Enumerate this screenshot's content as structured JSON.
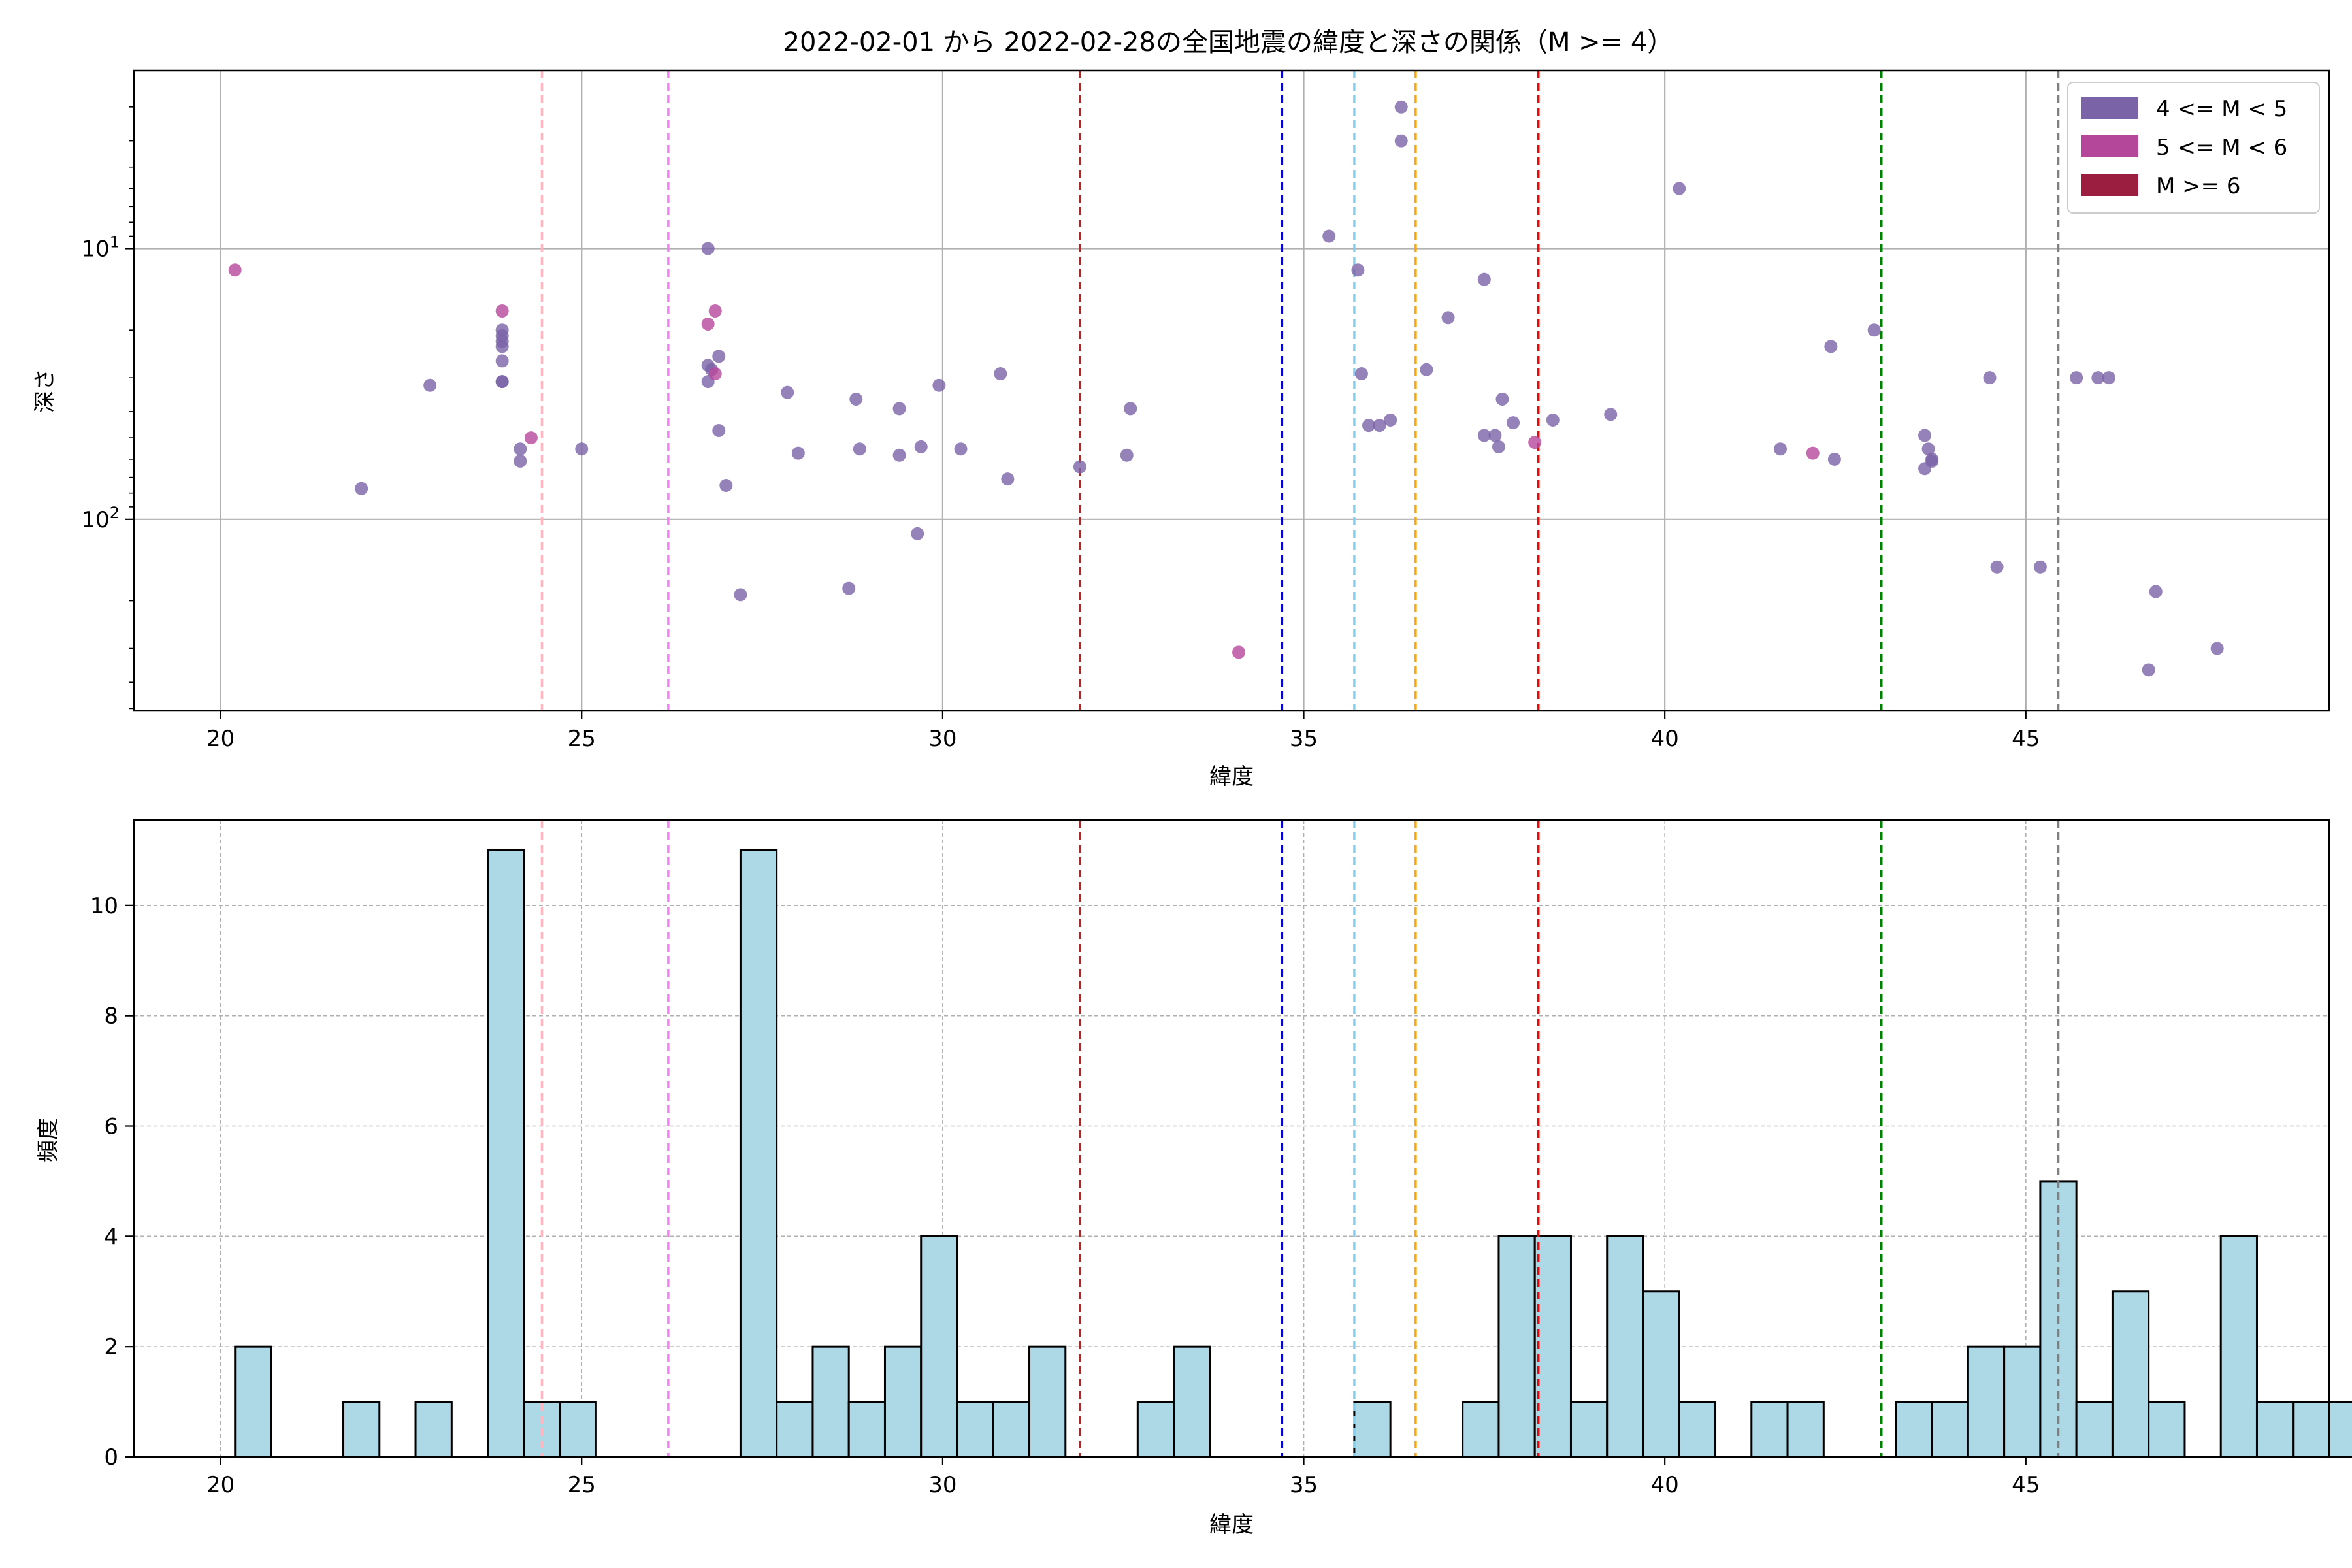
{
  "title": "2022-02-01 から 2022-02-28の全国地震の緯度と深さの関係（M >= 4）",
  "colors": {
    "m4": "#7b63a8",
    "m5": "#b5479b",
    "m6": "#9b1d40",
    "hist_fill": "#add8e6",
    "hist_edge": "#000000",
    "grid": "#b0b0b0"
  },
  "legend": {
    "position": "top-right",
    "items": [
      {
        "label": "4 <= M < 5",
        "color": "#7b63a8"
      },
      {
        "label": "5 <= M < 6",
        "color": "#b5479b"
      },
      {
        "label": "M >= 6",
        "color": "#9b1d40"
      }
    ]
  },
  "reference_lines": [
    {
      "x": 24.45,
      "color": "#ffb6c1"
    },
    {
      "x": 26.2,
      "color": "#ee82ee"
    },
    {
      "x": 31.9,
      "color": "#a52a2a"
    },
    {
      "x": 34.7,
      "color": "#0000ff"
    },
    {
      "x": 35.7,
      "color": "#87ceeb"
    },
    {
      "x": 36.55,
      "color": "#ffa500"
    },
    {
      "x": 38.25,
      "color": "#ff0000"
    },
    {
      "x": 43.0,
      "color": "#008000"
    },
    {
      "x": 45.45,
      "color": "#808080"
    }
  ],
  "chart_data": [
    {
      "type": "scatter",
      "xlabel": "緯度",
      "ylabel": "深さ",
      "xlim": [
        18.8,
        49.2
      ],
      "ylim": [
        510,
        2.2
      ],
      "yscale": "log",
      "y_inverted": true,
      "grid": true,
      "xticks": [
        20,
        25,
        30,
        35,
        40,
        45
      ],
      "yticks": [
        {
          "value": 10,
          "base": "10",
          "exp": "1"
        },
        {
          "value": 100,
          "base": "10",
          "exp": "2"
        }
      ],
      "series": [
        {
          "name": "4 <= M < 5",
          "points": [
            [
              21.95,
              77
            ],
            [
              22.9,
              32
            ],
            [
              23.9,
              20
            ],
            [
              23.9,
              21
            ],
            [
              23.9,
              22
            ],
            [
              23.9,
              23
            ],
            [
              23.9,
              26
            ],
            [
              23.9,
              31
            ],
            [
              23.9,
              31
            ],
            [
              24.15,
              55
            ],
            [
              24.15,
              61
            ],
            [
              25.0,
              55
            ],
            [
              26.75,
              10
            ],
            [
              26.75,
              27
            ],
            [
              26.75,
              31
            ],
            [
              26.8,
              28
            ],
            [
              26.9,
              25
            ],
            [
              26.9,
              47
            ],
            [
              27.0,
              75
            ],
            [
              27.2,
              190
            ],
            [
              27.85,
              34
            ],
            [
              28.0,
              57
            ],
            [
              28.7,
              180
            ],
            [
              28.8,
              36
            ],
            [
              28.85,
              55
            ],
            [
              29.4,
              39
            ],
            [
              29.4,
              58
            ],
            [
              29.65,
              113
            ],
            [
              29.7,
              54
            ],
            [
              29.95,
              32
            ],
            [
              30.25,
              55
            ],
            [
              30.8,
              29
            ],
            [
              30.9,
              71
            ],
            [
              31.9,
              64
            ],
            [
              32.55,
              58
            ],
            [
              32.6,
              39
            ],
            [
              35.35,
              9
            ],
            [
              35.75,
              12
            ],
            [
              35.8,
              29
            ],
            [
              35.9,
              45
            ],
            [
              36.05,
              45
            ],
            [
              36.2,
              43
            ],
            [
              36.35,
              4
            ],
            [
              36.35,
              3
            ],
            [
              36.7,
              28
            ],
            [
              37.0,
              18
            ],
            [
              37.5,
              13
            ],
            [
              37.5,
              49
            ],
            [
              37.65,
              49
            ],
            [
              37.7,
              54
            ],
            [
              37.75,
              36
            ],
            [
              37.9,
              44
            ],
            [
              38.45,
              43
            ],
            [
              39.25,
              41
            ],
            [
              40.2,
              6
            ],
            [
              41.6,
              55
            ],
            [
              42.3,
              23
            ],
            [
              42.35,
              60
            ],
            [
              42.9,
              20
            ],
            [
              43.6,
              49
            ],
            [
              43.6,
              65
            ],
            [
              43.65,
              55
            ],
            [
              43.7,
              60
            ],
            [
              43.7,
              61
            ],
            [
              44.5,
              30
            ],
            [
              44.6,
              150
            ],
            [
              45.2,
              150
            ],
            [
              45.7,
              30
            ],
            [
              46.0,
              30
            ],
            [
              46.15,
              30
            ],
            [
              46.7,
              360
            ],
            [
              46.8,
              185
            ],
            [
              47.65,
              300
            ]
          ]
        },
        {
          "name": "5 <= M < 6",
          "points": [
            [
              20.2,
              12
            ],
            [
              23.9,
              17
            ],
            [
              24.3,
              50
            ],
            [
              26.75,
              19
            ],
            [
              26.85,
              17
            ],
            [
              26.85,
              29
            ],
            [
              34.1,
              310
            ],
            [
              38.2,
              52
            ],
            [
              42.05,
              57
            ]
          ]
        }
      ]
    },
    {
      "type": "bar",
      "subtype": "histogram",
      "xlabel": "緯度",
      "ylabel": "頻度",
      "xlim": [
        18.8,
        49.2
      ],
      "ylim": [
        0,
        11.55
      ],
      "grid": true,
      "xticks": [
        20,
        25,
        30,
        35,
        40,
        45
      ],
      "yticks": [
        0,
        2,
        4,
        6,
        8,
        10
      ],
      "bin_start": 20.2,
      "bin_width": 0.5,
      "counts": [
        2,
        0,
        0,
        1,
        0,
        1,
        0,
        11,
        1,
        1,
        0,
        0,
        0,
        0,
        11,
        1,
        2,
        1,
        2,
        4,
        1,
        1,
        2,
        0,
        0,
        1,
        2,
        0,
        0,
        0,
        0,
        1,
        0,
        0,
        1,
        4,
        4,
        1,
        4,
        3,
        1,
        0,
        1,
        1,
        0,
        0,
        1,
        1,
        2,
        2,
        5,
        1,
        3,
        1,
        0,
        4,
        1,
        1,
        1
      ]
    }
  ]
}
